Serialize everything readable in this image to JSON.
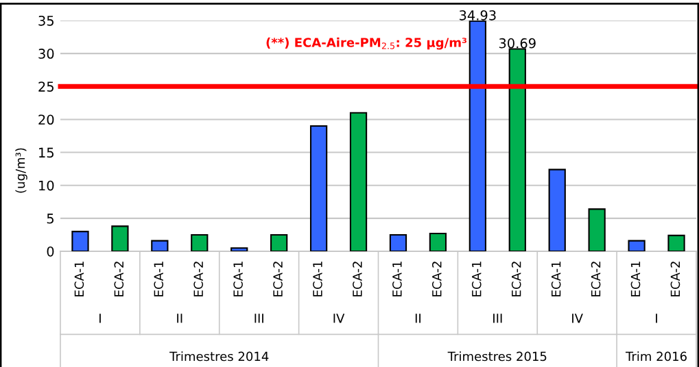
{
  "chart_data": {
    "type": "bar",
    "ylabel": "(ug/m³)",
    "categories": [
      "ECA-1",
      "ECA-2",
      "ECA-1",
      "ECA-2",
      "ECA-1",
      "ECA-2",
      "ECA-1",
      "ECA-2",
      "ECA-1",
      "ECA-2",
      "ECA-1",
      "ECA-2",
      "ECA-1",
      "ECA-2",
      "ECA-1",
      "ECA-2"
    ],
    "values": [
      3.0,
      3.8,
      1.6,
      2.5,
      0.5,
      2.5,
      19.0,
      21.0,
      2.5,
      2.7,
      34.93,
      30.69,
      12.4,
      6.4,
      1.6,
      2.4
    ],
    "colors": [
      "#3366ff",
      "#00b050",
      "#3366ff",
      "#00b050",
      "#3366ff",
      "#00b050",
      "#3366ff",
      "#00b050",
      "#3366ff",
      "#00b050",
      "#3366ff",
      "#00b050",
      "#3366ff",
      "#00b050",
      "#3366ff",
      "#00b050"
    ],
    "value_labels": [
      null,
      null,
      null,
      null,
      null,
      null,
      null,
      null,
      null,
      null,
      "34.93",
      "30.69",
      null,
      null,
      null,
      null
    ],
    "ylim": [
      0,
      35
    ],
    "yticks": [
      0,
      5,
      10,
      15,
      20,
      25,
      30,
      35
    ],
    "grid": "y",
    "legend": false,
    "ref_lines": [
      {
        "axis": "y",
        "value": 25,
        "label": "(**) ECA-Aire-PM$_{2.5}$: 25 µg/m³",
        "color": "#ff0000"
      }
    ],
    "annotations": [
      "I",
      "II",
      "III",
      "IV",
      "II",
      "III",
      "IV",
      "I",
      "Trimestres 2014",
      "Trimestres 2015",
      "Trim 2016"
    ]
  }
}
